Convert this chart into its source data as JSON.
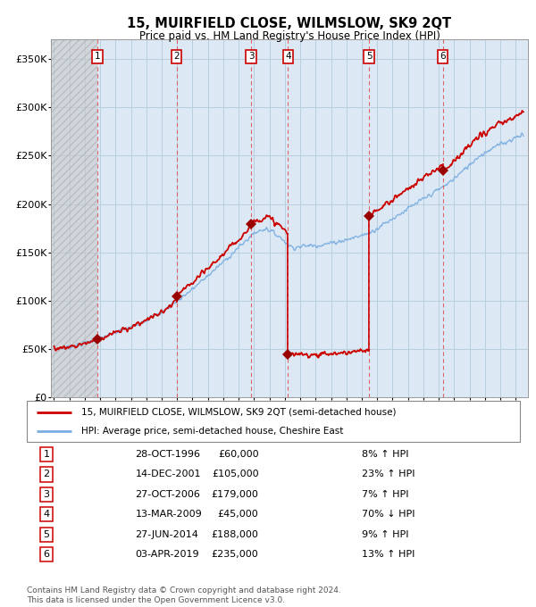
{
  "title": "15, MUIRFIELD CLOSE, WILMSLOW, SK9 2QT",
  "subtitle": "Price paid vs. HM Land Registry's House Price Index (HPI)",
  "ylim": [
    0,
    370000
  ],
  "yticks": [
    0,
    50000,
    100000,
    150000,
    200000,
    250000,
    300000,
    350000
  ],
  "ytick_labels": [
    "£0",
    "£50K",
    "£100K",
    "£150K",
    "£200K",
    "£250K",
    "£300K",
    "£350K"
  ],
  "sale_dates_x": [
    1996.83,
    2001.96,
    2006.82,
    2009.21,
    2014.49,
    2019.26
  ],
  "sale_prices_y": [
    60000,
    105000,
    179000,
    45000,
    188000,
    235000
  ],
  "sale_labels": [
    "1",
    "2",
    "3",
    "4",
    "5",
    "6"
  ],
  "sale_date_strings": [
    "28-OCT-1996",
    "14-DEC-2001",
    "27-OCT-2006",
    "13-MAR-2009",
    "27-JUN-2014",
    "03-APR-2019"
  ],
  "sale_price_strings": [
    "£60,000",
    "£105,000",
    "£179,000",
    "£45,000",
    "£188,000",
    "£235,000"
  ],
  "sale_hpi_strings": [
    "8% ↑ HPI",
    "23% ↑ HPI",
    "7% ↑ HPI",
    "70% ↓ HPI",
    "9% ↑ HPI",
    "13% ↑ HPI"
  ],
  "hpi_line_color": "#7aade0",
  "price_line_color": "#cc0000",
  "dot_color": "#990000",
  "dashed_line_color": "#dd4444",
  "bg_shaded_color": "#dce9f5",
  "grid_color": "#b8cfe0",
  "legend1_label": "15, MUIRFIELD CLOSE, WILMSLOW, SK9 2QT (semi-detached house)",
  "legend2_label": "HPI: Average price, semi-detached house, Cheshire East",
  "footer_line1": "Contains HM Land Registry data © Crown copyright and database right 2024.",
  "footer_line2": "This data is licensed under the Open Government Licence v3.0.",
  "xlim_start": 1993.8,
  "xlim_end": 2024.8
}
